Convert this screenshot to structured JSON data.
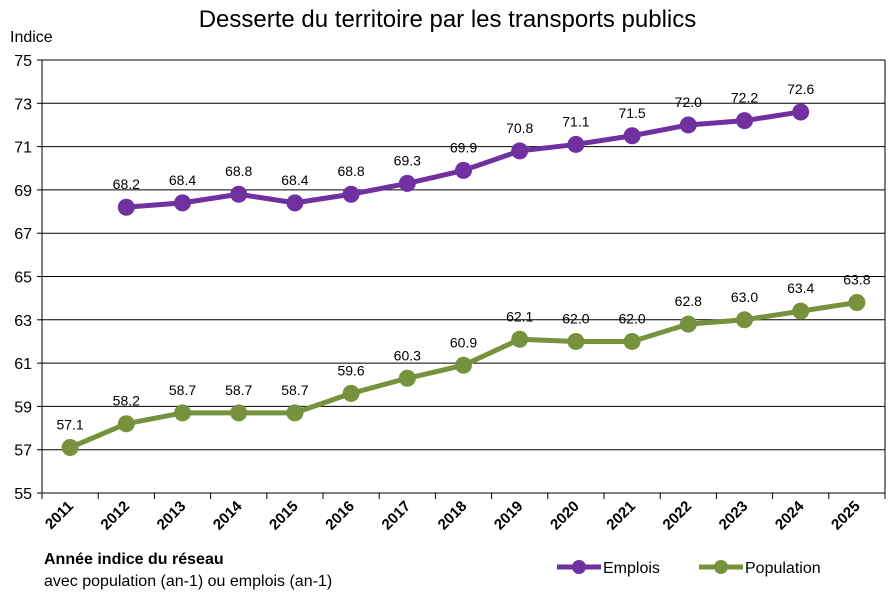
{
  "chart_data": {
    "type": "line",
    "title": "Desserte du territoire par les transports publics",
    "ylabel": "Indice",
    "xlabel_bold": "Année indice du réseau",
    "xlabel_sub": "avec population (an-1) ou emplois (an-1)",
    "ylim": [
      55,
      75
    ],
    "yticks": [
      "55",
      "57",
      "59",
      "61",
      "63",
      "65",
      "67",
      "69",
      "71",
      "73",
      "75"
    ],
    "categories": [
      "2011",
      "2012",
      "2013",
      "2014",
      "2015",
      "2016",
      "2017",
      "2018",
      "2019",
      "2020",
      "2021",
      "2022",
      "2023",
      "2024",
      "2025"
    ],
    "series": [
      {
        "name": "Emplois",
        "color": "#7030a0",
        "values": [
          null,
          68.2,
          68.4,
          68.8,
          68.4,
          68.8,
          69.3,
          69.9,
          70.8,
          71.1,
          71.5,
          72.0,
          72.2,
          72.6,
          null
        ],
        "labels": [
          "",
          "68.2",
          "68.4",
          "68.8",
          "68.4",
          "68.8",
          "69.3",
          "69.9",
          "70.8",
          "71.1",
          "71.5",
          "72.0",
          "72.2",
          "72.6",
          ""
        ]
      },
      {
        "name": "Population",
        "color": "#76923c",
        "values": [
          57.1,
          58.2,
          58.7,
          58.7,
          58.7,
          59.6,
          60.3,
          60.9,
          62.1,
          62.0,
          62.0,
          62.8,
          63.0,
          63.4,
          63.8
        ],
        "labels": [
          "57.1",
          "58.2",
          "58.7",
          "58.7",
          "58.7",
          "59.6",
          "60.3",
          "60.9",
          "62.1",
          "62.0",
          "62.0",
          "62.8",
          "63.0",
          "63.4",
          "63.8"
        ]
      }
    ],
    "legend": "bottom-right",
    "grid": true
  }
}
